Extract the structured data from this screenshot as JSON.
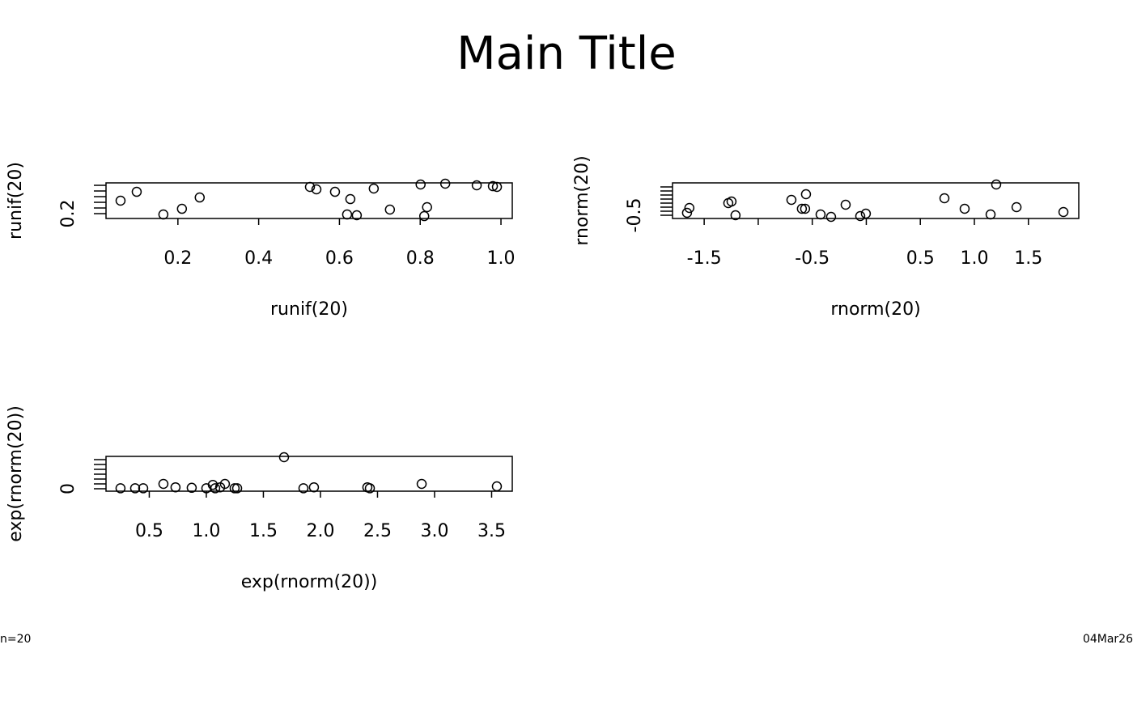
{
  "title": "Main Title",
  "footer_left": "n=20",
  "footer_right": "04Mar26",
  "chart_data": [
    {
      "type": "scatter",
      "x_label": "runif(20)",
      "y_label": "runif(20)",
      "x": [
        0.058,
        0.098,
        0.164,
        0.21,
        0.254,
        0.527,
        0.543,
        0.589,
        0.627,
        0.619,
        0.643,
        0.685,
        0.725,
        0.801,
        0.817,
        0.81,
        0.862,
        0.94,
        0.98,
        0.99
      ],
      "values": [
        0.657,
        0.971,
        0.171,
        0.371,
        0.771,
        1.143,
        1.057,
        0.971,
        0.714,
        0.171,
        0.143,
        1.086,
        0.343,
        1.229,
        0.429,
        0.114,
        1.257,
        1.2,
        1.171,
        1.143
      ],
      "xlim": [
        0.022,
        1.028
      ],
      "xticks": [
        0.2,
        0.4,
        0.6,
        0.8,
        {
          "value": 1,
          "label": "1.0"
        }
      ],
      "x_minor_ticks": [],
      "ylim": [
        0.029,
        1.286
      ],
      "yticks": [
        0.2
      ],
      "y_minor_ticks": [
        0.4,
        0.6,
        0.8,
        1,
        1.2
      ]
    },
    {
      "type": "scatter",
      "x_label": "rnorm(20)",
      "y_label": "rnorm(20)",
      "x": [
        -1.659,
        -1.637,
        -1.277,
        -1.247,
        -1.21,
        -0.693,
        -0.558,
        -0.596,
        -0.566,
        -0.423,
        -0.326,
        -0.191,
        -0.056,
        -0.004,
        0.723,
        0.91,
        1.15,
        1.202,
        1.39,
        1.824
      ],
      "values": [
        -0.2,
        0.4,
        1.0,
        1.2,
        -0.5,
        1.4,
        2.1,
        0.3,
        0.3,
        -0.4,
        -0.7,
        0.8,
        -0.6,
        -0.3,
        1.6,
        0.3,
        -0.4,
        3.3,
        0.5,
        -0.1
      ],
      "xlim": [
        -1.793,
        1.966
      ],
      "xticks": [
        -1.5,
        -0.5,
        0.5,
        {
          "value": 1,
          "label": "1.0"
        },
        1.5
      ],
      "x_minor_ticks": [
        -1,
        0
      ],
      "ylim": [
        -0.9,
        3.5
      ],
      "yticks": [
        -0.5
      ],
      "y_minor_ticks": [
        0,
        0.5,
        1,
        1.5,
        2,
        2.5,
        3
      ]
    },
    {
      "type": "scatter",
      "x_label": "exp(rnorm(20))",
      "y_label": "exp(rnorm(20))",
      "x": [
        0.248,
        0.376,
        0.447,
        0.624,
        0.73,
        0.872,
        1.0,
        1.057,
        1.078,
        1.121,
        1.163,
        1.248,
        1.27,
        1.681,
        1.851,
        1.943,
        2.411,
        2.433,
        2.887,
        3.546
      ],
      "values": [
        0.1,
        0.1,
        0.1,
        1.0,
        0.3,
        0.2,
        0.1,
        0.8,
        0.1,
        0.3,
        1.0,
        0.1,
        0.1,
        6.5,
        0.1,
        0.3,
        0.3,
        0.1,
        1.0,
        0.5
      ],
      "xlim": [
        0.121,
        3.681
      ],
      "xticks": [
        0.5,
        {
          "value": 1,
          "label": "1.0"
        },
        1.5,
        {
          "value": 2,
          "label": "2.0"
        },
        2.5,
        {
          "value": 3,
          "label": "3.0"
        },
        3.5
      ],
      "x_minor_ticks": [],
      "ylim": [
        -0.5,
        6.667
      ],
      "yticks": [
        0
      ],
      "y_minor_ticks": [
        1,
        2,
        3,
        4,
        5,
        6
      ]
    }
  ]
}
